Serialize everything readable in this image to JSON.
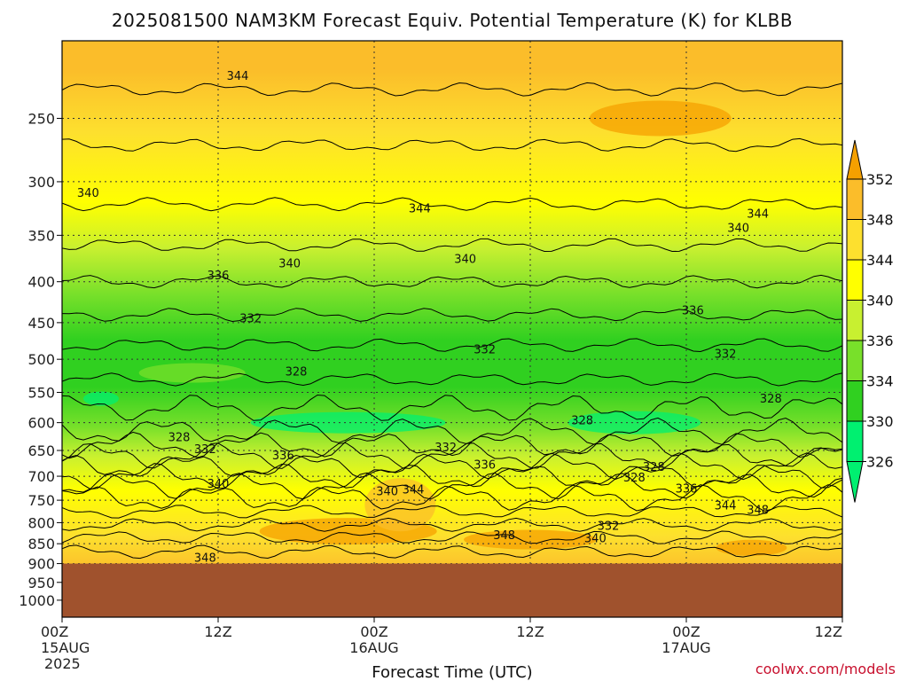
{
  "chart_data": {
    "type": "heatmap",
    "title": "2025081500 NAM3KM Forecast Equiv. Potential Temperature (K) for KLBB",
    "xlabel": "Forecast Time (UTC)",
    "ylabel": "",
    "x_ticks": [
      {
        "hour": 0,
        "label": "00Z",
        "sub1": "15AUG",
        "sub2": "2025"
      },
      {
        "hour": 12,
        "label": "12Z",
        "sub1": "",
        "sub2": ""
      },
      {
        "hour": 24,
        "label": "00Z",
        "sub1": "16AUG",
        "sub2": ""
      },
      {
        "hour": 36,
        "label": "12Z",
        "sub1": "",
        "sub2": ""
      },
      {
        "hour": 48,
        "label": "00Z",
        "sub1": "17AUG",
        "sub2": ""
      },
      {
        "hour": 60,
        "label": "12Z",
        "sub1": "",
        "sub2": ""
      }
    ],
    "xlim": [
      0,
      60
    ],
    "y_ticks": [
      250,
      300,
      350,
      400,
      450,
      500,
      550,
      600,
      650,
      700,
      750,
      800,
      850,
      900,
      950,
      1000
    ],
    "ylim": [
      200,
      1050
    ],
    "y_scale": "log",
    "surface_pressure": 900,
    "grid": true,
    "colorbar": {
      "levels": [
        352,
        348,
        344,
        340,
        336,
        334,
        330,
        326
      ],
      "colors": [
        "#f5a000",
        "#fbbd2a",
        "#fde02e",
        "#ffff00",
        "#c8f030",
        "#78e02a",
        "#30d020",
        "#00f070"
      ]
    },
    "contour_labels": [
      {
        "x": 13.5,
        "p": 222,
        "text": "344"
      },
      {
        "x": 2.0,
        "p": 311,
        "text": "340"
      },
      {
        "x": 27.5,
        "p": 325,
        "text": "344"
      },
      {
        "x": 17.5,
        "p": 381,
        "text": "340"
      },
      {
        "x": 31.0,
        "p": 376,
        "text": "340"
      },
      {
        "x": 12.0,
        "p": 394,
        "text": "336"
      },
      {
        "x": 14.5,
        "p": 446,
        "text": "332"
      },
      {
        "x": 53.5,
        "p": 330,
        "text": "344"
      },
      {
        "x": 52.0,
        "p": 344,
        "text": "340"
      },
      {
        "x": 48.5,
        "p": 436,
        "text": "336"
      },
      {
        "x": 32.5,
        "p": 488,
        "text": "332"
      },
      {
        "x": 51.0,
        "p": 494,
        "text": "332"
      },
      {
        "x": 18.0,
        "p": 520,
        "text": "328"
      },
      {
        "x": 54.5,
        "p": 562,
        "text": "328"
      },
      {
        "x": 40.0,
        "p": 598,
        "text": "328"
      },
      {
        "x": 9.0,
        "p": 628,
        "text": "328"
      },
      {
        "x": 11.0,
        "p": 650,
        "text": "332"
      },
      {
        "x": 17.0,
        "p": 662,
        "text": "336"
      },
      {
        "x": 29.5,
        "p": 647,
        "text": "332"
      },
      {
        "x": 32.5,
        "p": 680,
        "text": "336"
      },
      {
        "x": 44.0,
        "p": 705,
        "text": "328"
      },
      {
        "x": 45.5,
        "p": 684,
        "text": "328"
      },
      {
        "x": 48.0,
        "p": 728,
        "text": "336"
      },
      {
        "x": 12.0,
        "p": 718,
        "text": "340"
      },
      {
        "x": 25.0,
        "p": 734,
        "text": "340"
      },
      {
        "x": 27.0,
        "p": 730,
        "text": "344"
      },
      {
        "x": 51.0,
        "p": 764,
        "text": "344"
      },
      {
        "x": 53.5,
        "p": 774,
        "text": "348"
      },
      {
        "x": 42.0,
        "p": 810,
        "text": "332"
      },
      {
        "x": 41.0,
        "p": 840,
        "text": "340"
      },
      {
        "x": 34.0,
        "p": 832,
        "text": "348"
      },
      {
        "x": 11.0,
        "p": 888,
        "text": "348"
      }
    ]
  },
  "credit": "coolwx.com/models"
}
